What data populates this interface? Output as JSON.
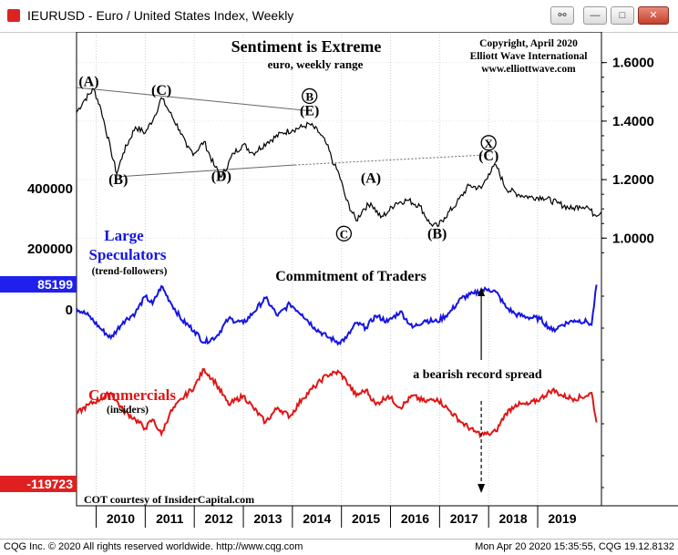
{
  "window": {
    "title": "IEURUSD - Euro / United States Index, Weekly",
    "minimize_label": "—",
    "maximize_label": "□",
    "close_label": "✕",
    "tool_label": "⚯"
  },
  "footer": {
    "left": "CQG Inc. © 2020 All rights reserved worldwide. http://www.cqg.com",
    "right": "Mon Apr 20 2020 15:35:55, CQG 19.12.8132"
  },
  "colors": {
    "speculators": "#1515e0",
    "commercials": "#e01515",
    "price": "#000000",
    "spec_badge": "#2020ee",
    "comm_badge": "#e02020"
  },
  "chart_data": {
    "type": "line",
    "title": "Sentiment is Extreme",
    "subtitle": "euro, weekly range",
    "credit": [
      "Copyright, April 2020",
      "Elliott Wave International",
      "www.elliottwave.com"
    ],
    "cot_title": "Commitment of Traders",
    "cot_credit": "COT courtesy of InsiderCapital.com",
    "x_axis": {
      "ticks": [
        "2010",
        "2011",
        "2012",
        "2013",
        "2014",
        "2015",
        "2016",
        "2017",
        "2018",
        "2019"
      ],
      "range": [
        2009.6,
        2020.3
      ]
    },
    "price_axis": {
      "ticks": [
        "1.6000",
        "1.4000",
        "1.2000",
        "1.0000"
      ],
      "range": [
        0.92,
        1.68
      ]
    },
    "cot_axis": {
      "ticks": [
        "400000",
        "200000",
        "0"
      ]
    },
    "price": {
      "name": "EURUSD",
      "x": [
        2009.6,
        2009.75,
        2009.95,
        2010.1,
        2010.3,
        2010.42,
        2010.55,
        2010.8,
        2011.0,
        2011.2,
        2011.33,
        2011.5,
        2011.7,
        2011.85,
        2012.0,
        2012.2,
        2012.4,
        2012.56,
        2012.8,
        2013.0,
        2013.2,
        2013.5,
        2013.8,
        2014.0,
        2014.2,
        2014.35,
        2014.55,
        2014.7,
        2014.85,
        2014.95,
        2015.1,
        2015.3,
        2015.45,
        2015.6,
        2015.8,
        2015.95,
        2016.1,
        2016.35,
        2016.6,
        2016.8,
        2016.96,
        2017.1,
        2017.35,
        2017.6,
        2017.85,
        2018.0,
        2018.15,
        2018.35,
        2018.6,
        2018.85,
        2019.1,
        2019.4,
        2019.7,
        2019.85,
        2020.0,
        2020.15,
        2020.3
      ],
      "y": [
        1.43,
        1.47,
        1.51,
        1.44,
        1.3,
        1.22,
        1.29,
        1.38,
        1.36,
        1.42,
        1.48,
        1.43,
        1.37,
        1.31,
        1.29,
        1.33,
        1.25,
        1.21,
        1.29,
        1.32,
        1.29,
        1.33,
        1.36,
        1.37,
        1.38,
        1.39,
        1.36,
        1.32,
        1.25,
        1.22,
        1.13,
        1.06,
        1.1,
        1.12,
        1.07,
        1.09,
        1.12,
        1.13,
        1.11,
        1.05,
        1.04,
        1.07,
        1.12,
        1.18,
        1.17,
        1.22,
        1.25,
        1.17,
        1.15,
        1.14,
        1.14,
        1.12,
        1.1,
        1.11,
        1.11,
        1.08,
        1.09
      ]
    },
    "price_annotations": [
      {
        "label": "(A)",
        "x": 2009.85,
        "y": 1.52
      },
      {
        "label": "(C)",
        "x": 2011.33,
        "y": 1.49
      },
      {
        "label": "B",
        "x": 2014.35,
        "y": 1.47,
        "circled": true
      },
      {
        "label": "(E)",
        "x": 2014.35,
        "y": 1.42
      },
      {
        "label": "(B)",
        "x": 2010.45,
        "y": 1.185
      },
      {
        "label": "(D)",
        "x": 2012.55,
        "y": 1.195
      },
      {
        "label": "(A)",
        "x": 2015.6,
        "y": 1.19
      },
      {
        "label": "C",
        "x": 2015.05,
        "y": 1.0,
        "circled": true
      },
      {
        "label": "(B)",
        "x": 2016.95,
        "y": 1.0
      },
      {
        "label": "X",
        "x": 2018.0,
        "y": 1.31,
        "circled": true
      },
      {
        "label": "(C)",
        "x": 2018.0,
        "y": 1.265
      }
    ],
    "speculators": {
      "name": "Large Speculators",
      "note": "(trend-followers)",
      "last_value": "85199",
      "x": [
        2009.6,
        2009.85,
        2010.1,
        2010.3,
        2010.55,
        2010.8,
        2011.0,
        2011.15,
        2011.33,
        2011.5,
        2011.75,
        2012.0,
        2012.2,
        2012.45,
        2012.7,
        2013.0,
        2013.2,
        2013.45,
        2013.7,
        2013.95,
        2014.2,
        2014.45,
        2014.7,
        2014.95,
        2015.1,
        2015.3,
        2015.5,
        2015.7,
        2015.95,
        2016.2,
        2016.45,
        2016.7,
        2016.95,
        2017.2,
        2017.45,
        2017.7,
        2017.85,
        2018.0,
        2018.15,
        2018.35,
        2018.55,
        2018.8,
        2019.05,
        2019.3,
        2019.5,
        2019.75,
        2020.0,
        2020.1,
        2020.2
      ],
      "y": [
        5,
        -20,
        -65,
        -95,
        -40,
        -10,
        45,
        20,
        80,
        30,
        -35,
        -70,
        -110,
        -90,
        -30,
        -45,
        -10,
        40,
        -20,
        20,
        -15,
        -60,
        -90,
        -110,
        -95,
        -45,
        -60,
        -20,
        -40,
        -5,
        -60,
        -35,
        -40,
        -10,
        40,
        55,
        65,
        70,
        60,
        10,
        -15,
        -25,
        -30,
        -70,
        -50,
        -35,
        -40,
        -50,
        85
      ]
    },
    "commercials": {
      "name": "Commercials",
      "note": "(insiders)",
      "last_value": "-119723",
      "x": [
        2009.6,
        2009.85,
        2010.1,
        2010.3,
        2010.55,
        2010.8,
        2011.0,
        2011.15,
        2011.33,
        2011.5,
        2011.75,
        2012.0,
        2012.2,
        2012.45,
        2012.7,
        2013.0,
        2013.2,
        2013.45,
        2013.7,
        2013.95,
        2014.2,
        2014.45,
        2014.7,
        2014.95,
        2015.1,
        2015.3,
        2015.5,
        2015.7,
        2015.95,
        2016.2,
        2016.45,
        2016.7,
        2016.95,
        2017.2,
        2017.45,
        2017.7,
        2017.85,
        2018.0,
        2018.15,
        2018.35,
        2018.55,
        2018.8,
        2019.05,
        2019.3,
        2019.5,
        2019.75,
        2020.0,
        2020.1,
        2020.2
      ],
      "y": [
        -350,
        -320,
        -300,
        -280,
        -340,
        -370,
        -400,
        -370,
        -420,
        -350,
        -300,
        -260,
        -200,
        -250,
        -320,
        -290,
        -330,
        -380,
        -330,
        -360,
        -300,
        -260,
        -220,
        -210,
        -240,
        -290,
        -270,
        -320,
        -290,
        -330,
        -290,
        -310,
        -300,
        -340,
        -380,
        -410,
        -420,
        -420,
        -410,
        -350,
        -320,
        -320,
        -300,
        -270,
        -290,
        -300,
        -290,
        -280,
        -380
      ]
    },
    "annotation_spread": "a bearish record spread"
  }
}
